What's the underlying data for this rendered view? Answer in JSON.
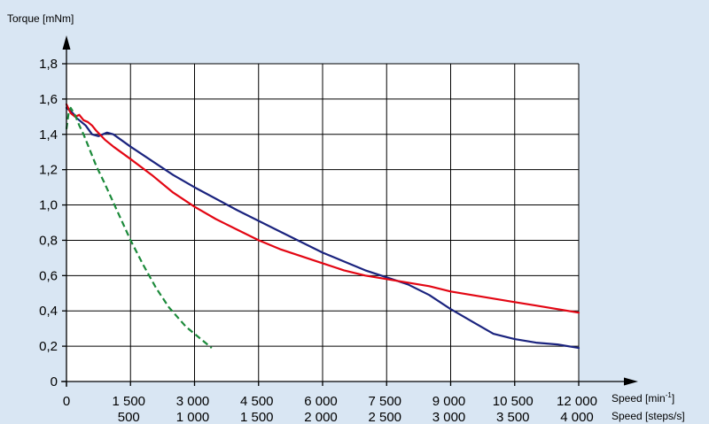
{
  "chart_data": {
    "type": "line",
    "ylabel": "Torque [mNm]",
    "xlabel_primary": "Speed [min",
    "xlabel_primary_sup": "-1",
    "xlabel_primary_end": "]",
    "xlabel_secondary": "Speed [steps/s]",
    "xlim": [
      0,
      12000
    ],
    "ylim": [
      0,
      1.8
    ],
    "grid": true,
    "x_ticks": [
      0,
      1500,
      3000,
      4500,
      6000,
      7500,
      9000,
      10500,
      12000
    ],
    "x_tick_labels": [
      "0",
      "1 500",
      "3 000",
      "4 500",
      "6 000",
      "7 500",
      "9 000",
      "10 500",
      "12 000"
    ],
    "x_secondary_tick_labels": [
      "",
      "500",
      "1 000",
      "1 500",
      "2 000",
      "2 500",
      "3 000",
      "3 500",
      "4 000"
    ],
    "y_ticks": [
      0,
      0.2,
      0.4,
      0.6,
      0.8,
      1.0,
      1.2,
      1.4,
      1.6,
      1.8
    ],
    "y_tick_labels": [
      "0",
      "0,2",
      "0,4",
      "0,6",
      "0,8",
      "1,0",
      "1,2",
      "1,4",
      "1,6",
      "1,8"
    ],
    "series": [
      {
        "color": "#1a237e",
        "style": "solid",
        "x": [
          0,
          150,
          250,
          350,
          450,
          600,
          750,
          850,
          950,
          1100,
          1500,
          2000,
          2500,
          3000,
          4000,
          5000,
          6000,
          6500,
          7000,
          7500,
          8000,
          8500,
          9000,
          9500,
          10000,
          10500,
          11000,
          11500,
          12000
        ],
        "y": [
          1.55,
          1.52,
          1.49,
          1.47,
          1.45,
          1.4,
          1.39,
          1.4,
          1.41,
          1.4,
          1.33,
          1.25,
          1.17,
          1.1,
          0.97,
          0.85,
          0.73,
          0.68,
          0.63,
          0.59,
          0.55,
          0.49,
          0.41,
          0.34,
          0.27,
          0.24,
          0.22,
          0.21,
          0.19
        ]
      },
      {
        "color": "#e30613",
        "style": "solid",
        "x": [
          0,
          100,
          200,
          300,
          400,
          500,
          600,
          700,
          900,
          1100,
          1500,
          2000,
          2500,
          3000,
          3500,
          4000,
          4500,
          5000,
          5500,
          6000,
          6500,
          7000,
          7500,
          8000,
          8500,
          9000,
          9500,
          10000,
          10500,
          11000,
          11500,
          12000
        ],
        "y": [
          1.57,
          1.52,
          1.5,
          1.51,
          1.48,
          1.47,
          1.45,
          1.42,
          1.37,
          1.33,
          1.26,
          1.17,
          1.07,
          0.99,
          0.92,
          0.86,
          0.8,
          0.75,
          0.71,
          0.67,
          0.63,
          0.6,
          0.58,
          0.56,
          0.54,
          0.51,
          0.49,
          0.47,
          0.45,
          0.43,
          0.41,
          0.39
        ]
      },
      {
        "color": "#1b8a3a",
        "style": "dashed",
        "x": [
          0,
          50,
          100,
          150,
          200,
          300,
          400,
          500,
          700,
          900,
          1200,
          1500,
          1800,
          2100,
          2400,
          2800,
          3000,
          3400
        ],
        "y": [
          1.43,
          1.52,
          1.55,
          1.53,
          1.51,
          1.45,
          1.4,
          1.34,
          1.22,
          1.12,
          0.96,
          0.8,
          0.66,
          0.53,
          0.42,
          0.31,
          0.27,
          0.19
        ]
      }
    ]
  }
}
